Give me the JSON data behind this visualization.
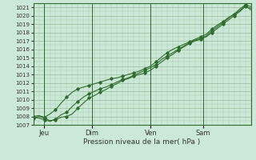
{
  "xlabel": "Pression niveau de la mer( hPa )",
  "background_color": "#cce8d8",
  "plot_bg_color": "#cce8d8",
  "grid_color": "#99bb99",
  "line_color": "#2d6e2d",
  "ylim": [
    1007,
    1021.5
  ],
  "ytick_min": 1007,
  "ytick_max": 1021,
  "xtick_labels": [
    "Jeu",
    "Dim",
    "Ven",
    "Sam"
  ],
  "xtick_positions": [
    0.05,
    0.27,
    0.54,
    0.78
  ],
  "vline_positions": [
    0.05,
    0.27,
    0.54,
    0.78
  ],
  "num_points": 40,
  "line1_x": [
    0,
    1,
    2,
    3,
    4,
    5,
    6,
    7,
    8,
    9,
    10,
    11,
    12,
    13,
    14,
    15,
    16,
    17,
    18,
    19,
    20,
    21,
    22,
    23,
    24,
    25,
    26,
    27,
    28,
    29,
    30,
    31,
    32,
    33,
    34,
    35,
    36,
    37,
    38,
    39
  ],
  "line1": [
    1007.8,
    1008.0,
    1007.8,
    1007.5,
    1007.6,
    1007.9,
    1008.0,
    1008.3,
    1009.0,
    1009.6,
    1010.2,
    1010.5,
    1010.9,
    1011.2,
    1011.6,
    1011.9,
    1012.3,
    1012.5,
    1012.8,
    1013.0,
    1013.2,
    1013.5,
    1014.0,
    1014.5,
    1015.0,
    1015.4,
    1015.9,
    1016.3,
    1016.7,
    1017.0,
    1017.2,
    1017.5,
    1018.0,
    1018.5,
    1019.0,
    1019.5,
    1020.0,
    1020.5,
    1021.1,
    1020.9
  ],
  "line2": [
    1007.9,
    1007.8,
    1007.6,
    1007.4,
    1007.7,
    1008.2,
    1008.5,
    1009.2,
    1009.8,
    1010.3,
    1010.7,
    1011.0,
    1011.3,
    1011.5,
    1011.8,
    1012.1,
    1012.4,
    1012.6,
    1012.9,
    1013.2,
    1013.5,
    1013.8,
    1014.2,
    1014.8,
    1015.2,
    1015.6,
    1016.0,
    1016.4,
    1016.8,
    1017.1,
    1017.3,
    1017.6,
    1018.2,
    1018.7,
    1019.2,
    1019.7,
    1020.2,
    1020.8,
    1021.3,
    1021.1
  ],
  "line3": [
    1008.0,
    1008.1,
    1007.9,
    1008.3,
    1008.8,
    1009.6,
    1010.3,
    1010.9,
    1011.3,
    1011.5,
    1011.7,
    1011.9,
    1012.1,
    1012.3,
    1012.5,
    1012.6,
    1012.8,
    1013.0,
    1013.2,
    1013.4,
    1013.7,
    1014.0,
    1014.5,
    1015.1,
    1015.6,
    1016.0,
    1016.3,
    1016.6,
    1016.9,
    1017.2,
    1017.5,
    1017.8,
    1018.4,
    1018.9,
    1019.3,
    1019.8,
    1020.2,
    1020.6,
    1021.2,
    1020.7
  ]
}
